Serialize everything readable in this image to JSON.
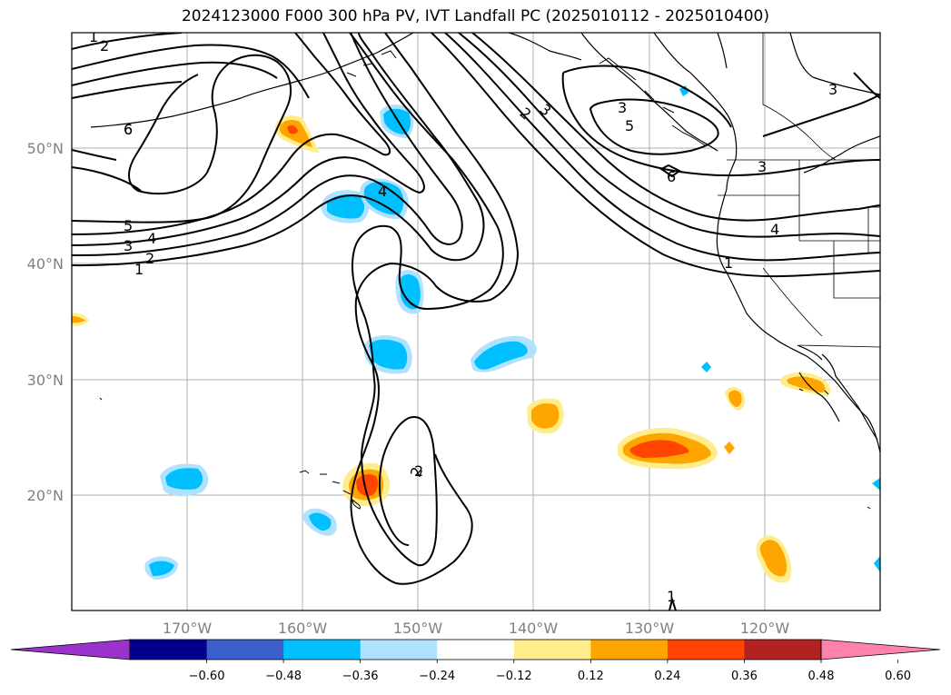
{
  "title": "2024123000 F000 300 hPa PV, IVT Landfall PC (2025010112 - 2025010400)",
  "map": {
    "lon_labels": [
      "170°W",
      "160°W",
      "150°W",
      "140°W",
      "130°W",
      "120°W"
    ],
    "lat_labels": [
      "50°N",
      "40°N",
      "30°N",
      "20°N"
    ],
    "contour_labels": [
      "1",
      "2",
      "2",
      "3",
      "6",
      "4",
      "5",
      "4",
      "3",
      "2",
      "1",
      "2",
      "3",
      "5",
      "6",
      "3",
      "3",
      "4",
      "1",
      "2",
      "1",
      "6"
    ]
  },
  "colorbar": {
    "colors": [
      "#9933cc",
      "#00008b",
      "#3a5fcd",
      "#00bfff",
      "#b0e2ff",
      "#ffffff",
      "#ffec8b",
      "#ffa500",
      "#ff4500",
      "#b22222",
      "#ff82ab"
    ],
    "tick_labels": [
      "−0.60",
      "−0.48",
      "−0.36",
      "−0.24",
      "−0.12",
      "0.12",
      "0.24",
      "0.36",
      "0.48",
      "0.60"
    ]
  },
  "fill_colors": {
    "pos1": "#ffec8b",
    "pos2": "#ffa500",
    "pos3": "#ff4500",
    "neg1": "#b0e2ff",
    "neg2": "#00bfff"
  }
}
